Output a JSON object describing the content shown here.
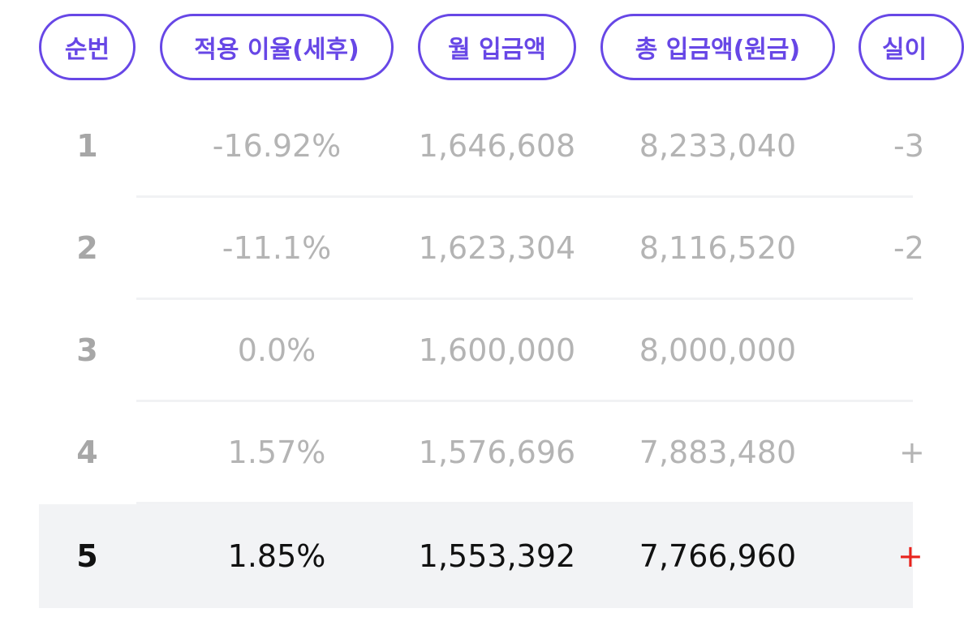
{
  "headers": {
    "index": "순번",
    "rate": "적용 이율(세후)",
    "monthly": "월 입금액",
    "total": "총 입금액(원금)",
    "actual_partial": "실이"
  },
  "rows": [
    {
      "index": "1",
      "rate": "-16.92%",
      "monthly": "1,646,608",
      "total": "8,233,040",
      "edge": "-3"
    },
    {
      "index": "2",
      "rate": "-11.1%",
      "monthly": "1,623,304",
      "total": "8,116,520",
      "edge": "-2"
    },
    {
      "index": "3",
      "rate": "0.0%",
      "monthly": "1,600,000",
      "total": "8,000,000",
      "edge": ""
    },
    {
      "index": "4",
      "rate": "1.57%",
      "monthly": "1,576,696",
      "total": "7,883,480",
      "edge": "+"
    },
    {
      "index": "5",
      "rate": "1.85%",
      "monthly": "1,553,392",
      "total": "7,766,960",
      "edge": "+",
      "selected": true
    }
  ],
  "colors": {
    "accent": "#6747e6",
    "muted_text": "#b4b4b4",
    "active_text": "#111111",
    "positive_red": "#e8231d",
    "selected_row_bg": "#f2f3f5"
  }
}
